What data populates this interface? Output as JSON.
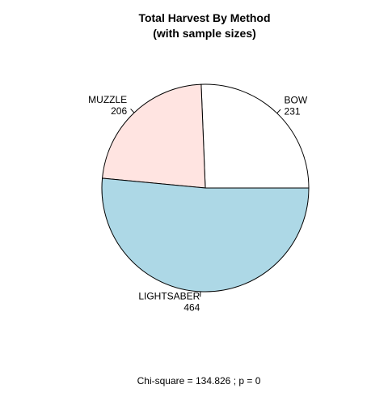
{
  "chart_data": {
    "type": "pie",
    "title": "Total Harvest By Method",
    "subtitle": "(with sample sizes)",
    "slices": [
      {
        "label": "BOW",
        "value": 231,
        "color": "#ffffff"
      },
      {
        "label": "MUZZLE",
        "value": 206,
        "color": "#ffe4e1"
      },
      {
        "label": "LIGHTSABER",
        "value": 464,
        "color": "#add8e6"
      }
    ],
    "footer": "Chi-square = 134.826 ; p = 0",
    "edge_color": "#000000"
  }
}
